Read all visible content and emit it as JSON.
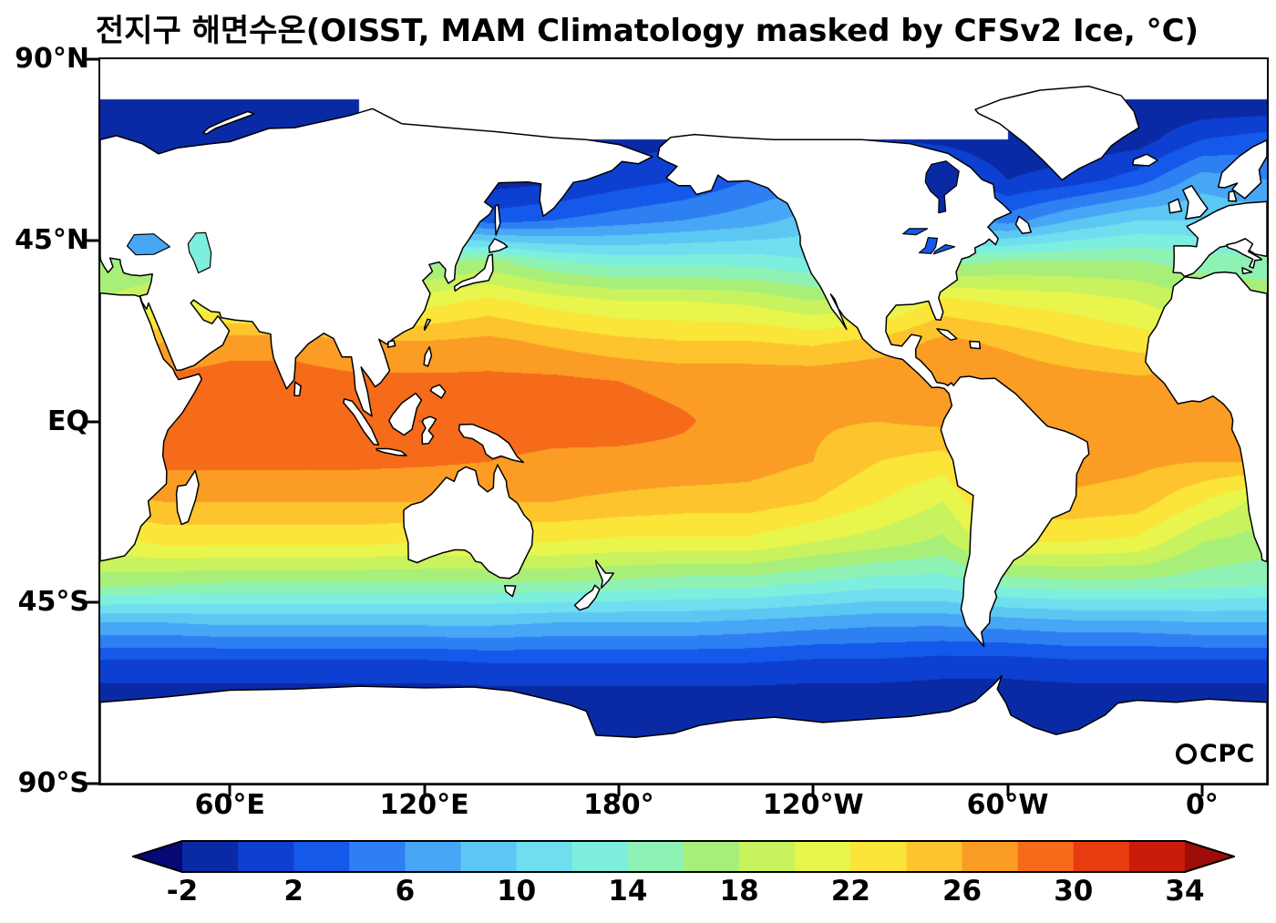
{
  "title": "전지구 해면수온(OISST, MAM Climatology masked by CFSv2 Ice, °C)",
  "logo": {
    "text": "CPC",
    "icon": "globe-icon"
  },
  "axes": {
    "y": [
      {
        "label": "90°N",
        "lat": 90
      },
      {
        "label": "45°N",
        "lat": 45
      },
      {
        "label": "EQ",
        "lat": 0
      },
      {
        "label": "45°S",
        "lat": -45
      },
      {
        "label": "90°S",
        "lat": -90
      }
    ],
    "x": [
      {
        "label": "60°E",
        "lon": 60
      },
      {
        "label": "120°E",
        "lon": 120
      },
      {
        "label": "180°",
        "lon": 180
      },
      {
        "label": "120°W",
        "lon": 240
      },
      {
        "label": "60°W",
        "lon": 300
      },
      {
        "label": "0°",
        "lon": 360
      }
    ]
  },
  "colorbar": {
    "band_min": -2,
    "band_max": 34,
    "band_step": 2,
    "under_color": "#060874",
    "over_color": "#9e0d07",
    "colors": [
      "#0a2aa5",
      "#0d3fd0",
      "#1459ea",
      "#2e7ff2",
      "#47a6f5",
      "#5cc7f2",
      "#6fdff0",
      "#7eeede",
      "#8ff2b5",
      "#a8ef7a",
      "#c8f25e",
      "#e8f54d",
      "#fbe538",
      "#fdc42e",
      "#fb9c24",
      "#f56b1a",
      "#e93b10",
      "#c91c0a"
    ],
    "tick_labels": [
      "-2",
      "2",
      "6",
      "10",
      "14",
      "18",
      "22",
      "26",
      "30",
      "34"
    ],
    "tick_values": [
      -2,
      2,
      6,
      10,
      14,
      18,
      22,
      26,
      30,
      34
    ]
  },
  "chart_data": {
    "type": "heatmap",
    "title": "전지구 해면수온(OISST, MAM Climatology masked by CFSv2 Ice, °C)",
    "units": "°C",
    "projection": "equirectangular",
    "lon_range": [
      20,
      380
    ],
    "lat_range": [
      -90,
      90
    ],
    "lons": [
      20,
      40,
      60,
      80,
      100,
      120,
      140,
      160,
      180,
      200,
      220,
      240,
      260,
      280,
      300,
      320,
      340,
      360,
      380
    ],
    "lats": [
      90,
      80,
      70,
      60,
      50,
      40,
      30,
      20,
      10,
      0,
      -10,
      -20,
      -30,
      -40,
      -50,
      -60,
      -70,
      -80,
      -90
    ],
    "sst": [
      [
        null,
        null,
        null,
        null,
        null,
        null,
        null,
        null,
        null,
        null,
        null,
        null,
        null,
        null,
        null,
        null,
        null,
        null,
        null
      ],
      [
        -2,
        -2,
        -2,
        -2,
        -2,
        null,
        null,
        null,
        null,
        null,
        null,
        null,
        null,
        null,
        -2,
        -2,
        -2,
        -2,
        -2
      ],
      [
        -1.5,
        -1.8,
        -2,
        -2,
        -2,
        -2,
        -1.5,
        -1,
        -1,
        -0.5,
        0,
        0,
        0,
        -0.5,
        -1.5,
        -1.5,
        -1,
        2,
        3
      ],
      [
        3,
        3,
        3,
        3,
        3,
        2,
        -1,
        -0.5,
        1,
        2,
        4,
        5,
        4,
        3,
        0,
        1,
        3,
        7,
        6
      ],
      [
        8,
        8,
        8,
        8,
        8,
        7,
        3,
        4,
        5,
        6,
        7,
        9,
        8,
        7,
        5,
        8,
        10,
        10,
        9
      ],
      [
        16,
        16,
        15,
        14,
        14,
        15,
        16.5,
        14,
        13,
        13,
        13,
        12,
        13,
        15,
        16,
        16,
        16,
        15,
        15
      ],
      [
        18,
        20,
        20,
        20,
        20,
        21,
        22.5,
        21,
        20,
        20,
        19.5,
        18,
        19,
        22.5,
        21.5,
        21,
        20,
        18,
        17
      ],
      [
        24,
        26,
        27,
        27,
        26,
        26,
        26.5,
        25.5,
        24.5,
        24,
        24,
        23.5,
        24.5,
        26.5,
        25.5,
        24,
        23,
        22,
        23
      ],
      [
        27,
        28.5,
        29,
        29,
        28.5,
        28.5,
        28.5,
        28.5,
        28,
        27.5,
        27.5,
        27.5,
        28,
        27.8,
        27.5,
        27,
        26.5,
        27,
        27
      ],
      [
        28,
        29,
        29,
        29,
        29,
        30.1,
        29.2,
        29,
        28.8,
        28.2,
        27.2,
        26.3,
        26,
        26.5,
        27.2,
        27.2,
        27,
        27.6,
        27.6
      ],
      [
        28,
        28.5,
        28.5,
        28.5,
        28.5,
        28.3,
        28,
        27.5,
        27.5,
        27.5,
        27,
        26,
        24,
        23,
        27,
        27,
        26.5,
        26,
        26
      ],
      [
        25.5,
        26,
        26,
        26,
        26,
        26,
        26,
        26,
        25.5,
        25,
        25,
        24,
        22,
        20,
        25.5,
        25.5,
        25,
        22,
        19
      ],
      [
        21,
        22.5,
        22.5,
        22.5,
        22.5,
        22,
        22,
        22,
        21.5,
        21.5,
        21.5,
        20,
        19,
        17.5,
        22,
        22,
        21.5,
        18,
        17
      ],
      [
        17,
        16.5,
        16,
        16,
        16,
        16,
        16,
        16,
        15.5,
        15,
        15,
        14,
        13,
        13,
        15,
        15.5,
        15.5,
        15,
        14.5
      ],
      [
        8,
        8,
        8.5,
        8.5,
        8.5,
        8.5,
        8.5,
        8,
        8,
        8,
        7.5,
        7,
        6.5,
        6.5,
        7,
        7.5,
        7.5,
        8,
        8
      ],
      [
        1.5,
        1.5,
        1.5,
        1.5,
        1.5,
        1.5,
        2,
        2,
        2,
        2,
        2,
        1.5,
        1.5,
        1,
        1,
        1.5,
        1.5,
        1.5,
        1.5
      ],
      [
        -1.5,
        -1.5,
        -1.5,
        -1.5,
        -1.5,
        -1.5,
        -1.5,
        -1.5,
        -1.5,
        -1.5,
        -1.5,
        -1.5,
        -1.5,
        -1.5,
        -1.5,
        -1.5,
        -1.5,
        -1.5,
        -1.5
      ],
      [
        -2,
        -2,
        -2,
        -2,
        -2,
        -2,
        -2,
        -2,
        -2,
        -2,
        -2,
        -2,
        -2,
        -2,
        -2,
        -2,
        -2,
        -2,
        -2
      ],
      [
        -2,
        -2,
        -2,
        -2,
        -2,
        -2,
        -2,
        -2,
        -2,
        -2,
        -2,
        -2,
        -2,
        -2,
        -2,
        -2,
        -2,
        -2,
        -2
      ]
    ],
    "lakes": {
      "hudson_bay": -1,
      "black_sea": 7,
      "caspian_sea": 12,
      "great_lakes": 3
    }
  }
}
